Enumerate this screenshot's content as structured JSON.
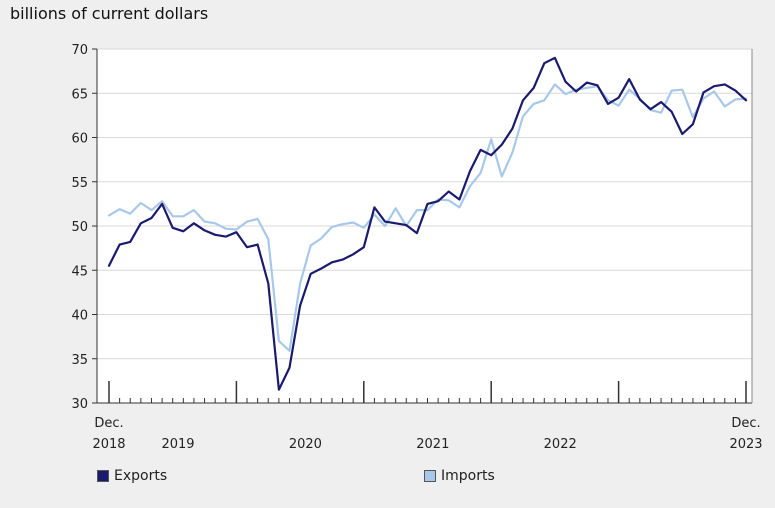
{
  "chart_data": {
    "type": "line",
    "unit_label": "billions of current dollars",
    "ylim": [
      30,
      70
    ],
    "y_ticks": [
      30,
      35,
      40,
      45,
      50,
      55,
      60,
      65,
      70
    ],
    "x_range": [
      "2018-12",
      "2023-12"
    ],
    "x_tick_labels": [
      {
        "line1": "Dec.",
        "line2": "2018"
      },
      {
        "line1": "",
        "line2": "2019"
      },
      {
        "line1": "",
        "line2": "2020"
      },
      {
        "line1": "",
        "line2": "2021"
      },
      {
        "line1": "",
        "line2": "2022"
      },
      {
        "line1": "Dec.",
        "line2": "2023"
      }
    ],
    "grid": "horizontal",
    "legend_position": "bottom",
    "x": [
      "2018-12",
      "2019-01",
      "2019-02",
      "2019-03",
      "2019-04",
      "2019-05",
      "2019-06",
      "2019-07",
      "2019-08",
      "2019-09",
      "2019-10",
      "2019-11",
      "2019-12",
      "2020-01",
      "2020-02",
      "2020-03",
      "2020-04",
      "2020-05",
      "2020-06",
      "2020-07",
      "2020-08",
      "2020-09",
      "2020-10",
      "2020-11",
      "2020-12",
      "2021-01",
      "2021-02",
      "2021-03",
      "2021-04",
      "2021-05",
      "2021-06",
      "2021-07",
      "2021-08",
      "2021-09",
      "2021-10",
      "2021-11",
      "2021-12",
      "2022-01",
      "2022-02",
      "2022-03",
      "2022-04",
      "2022-05",
      "2022-06",
      "2022-07",
      "2022-08",
      "2022-09",
      "2022-10",
      "2022-11",
      "2022-12",
      "2023-01",
      "2023-02",
      "2023-03",
      "2023-04",
      "2023-05",
      "2023-06",
      "2023-07",
      "2023-08",
      "2023-09",
      "2023-10",
      "2023-11",
      "2023-12"
    ],
    "series": [
      {
        "name": "Exports",
        "color": "#1a1a6e",
        "values": [
          45.5,
          47.9,
          48.2,
          50.3,
          50.9,
          52.5,
          49.8,
          49.4,
          50.3,
          49.5,
          49.0,
          48.8,
          49.3,
          47.6,
          47.9,
          43.5,
          31.5,
          34.0,
          41.0,
          44.6,
          45.2,
          45.9,
          46.2,
          46.8,
          47.6,
          52.1,
          50.5,
          50.3,
          50.1,
          49.2,
          52.5,
          52.8,
          53.9,
          53.0,
          56.2,
          58.6,
          58.0,
          59.2,
          61.0,
          64.2,
          65.6,
          68.4,
          69.0,
          66.3,
          65.2,
          66.2,
          65.9,
          63.8,
          64.5,
          66.6,
          64.3,
          63.2,
          64.0,
          62.9,
          60.4,
          61.5,
          65.1,
          65.8,
          66.0,
          65.3,
          64.2
        ]
      },
      {
        "name": "Imports",
        "color": "#a8c8ea",
        "values": [
          51.2,
          51.9,
          51.4,
          52.6,
          51.8,
          52.8,
          51.1,
          51.1,
          51.8,
          50.5,
          50.3,
          49.7,
          49.6,
          50.5,
          50.8,
          48.5,
          37.0,
          35.9,
          43.5,
          47.8,
          48.6,
          49.9,
          50.2,
          50.4,
          49.8,
          51.3,
          50.0,
          52.0,
          50.0,
          51.8,
          51.8,
          53.0,
          52.9,
          52.1,
          54.5,
          56.0,
          59.8,
          55.6,
          58.3,
          62.4,
          63.8,
          64.2,
          66.0,
          64.9,
          65.4,
          65.6,
          65.8,
          64.2,
          63.6,
          65.4,
          64.4,
          63.1,
          62.8,
          65.3,
          65.4,
          62.3,
          64.4,
          65.2,
          63.5,
          64.3,
          64.4
        ]
      }
    ]
  },
  "legend": {
    "exports": {
      "label": "Exports",
      "color": "#1a1a6e"
    },
    "imports": {
      "label": "Imports",
      "color": "#a8c8ea"
    }
  }
}
